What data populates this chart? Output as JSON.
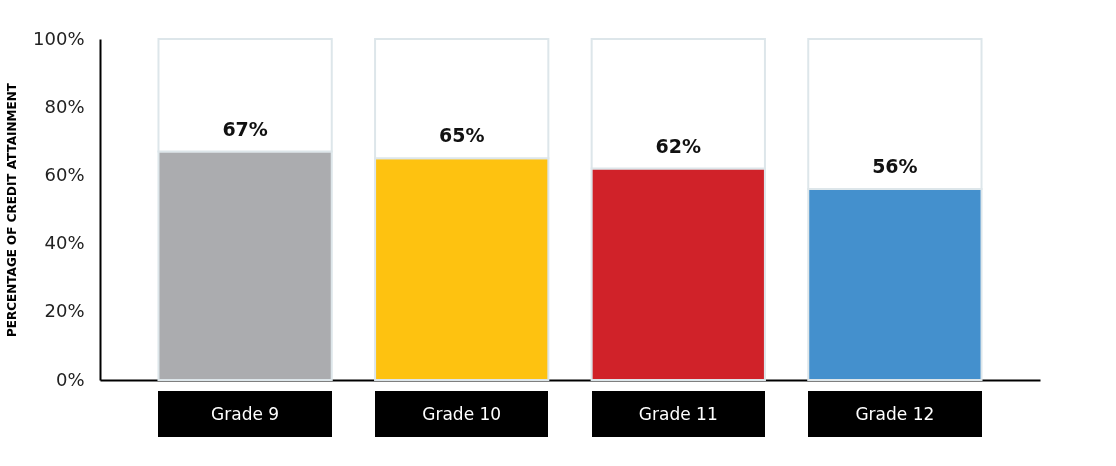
{
  "chart_data": {
    "type": "bar",
    "ylabel": "PERCENTAGE OF CREDIT ATTAINMENT",
    "categories": [
      "Grade 9",
      "Grade 10",
      "Grade 11",
      "Grade 12"
    ],
    "stacked": true,
    "series": [
      {
        "colors": [
          "#abacaf",
          "#fec210",
          "#d02229",
          "#4490cd"
        ],
        "values": [
          67,
          65,
          62,
          56
        ],
        "value_labels": [
          "67%",
          "65%",
          "62%",
          "56%"
        ]
      },
      {
        "color": "#ffffff",
        "values": [
          33,
          35,
          38,
          44
        ]
      }
    ],
    "ylim": [
      0,
      100
    ],
    "yticks": [
      {
        "value": 0,
        "label": "0%"
      },
      {
        "value": 20,
        "label": "20%"
      },
      {
        "value": 40,
        "label": "40%"
      },
      {
        "value": 60,
        "label": "60%"
      },
      {
        "value": 80,
        "label": "80%"
      },
      {
        "value": 100,
        "label": "100%"
      }
    ],
    "grid": false,
    "legend": false
  }
}
